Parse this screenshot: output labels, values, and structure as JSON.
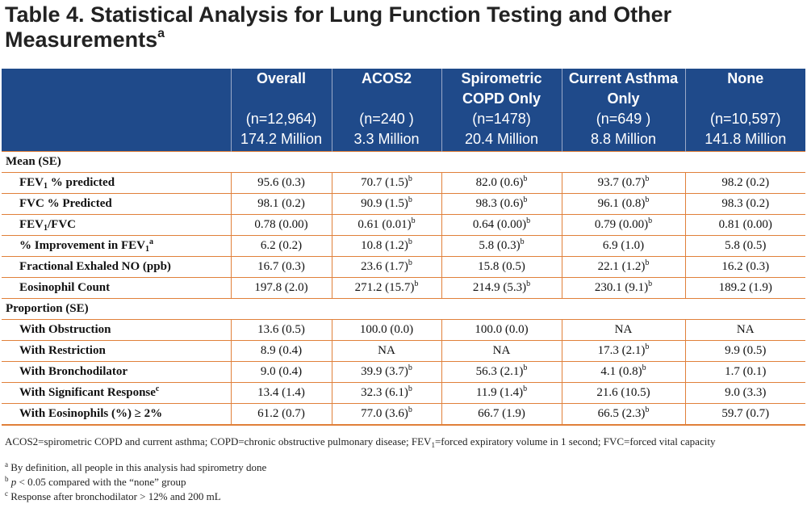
{
  "title": {
    "text": "Table 4. Statistical Analysis for Lung Function Testing and Other Measurements",
    "sup": "a"
  },
  "columns": [
    {
      "name": "Overall",
      "n": "(n=12,964)",
      "pop": "174.2 Million"
    },
    {
      "name": "ACOS2",
      "n": "(n=240 )",
      "pop": "3.3 Million"
    },
    {
      "name": "Spirometric COPD Only",
      "n": "(n=1478)",
      "pop": "20.4 Million"
    },
    {
      "name": "Current Asthma Only",
      "n": "(n=649 )",
      "pop": "8.8 Million"
    },
    {
      "name": "None",
      "n": "(n=10,597)",
      "pop": "141.8 Million"
    }
  ],
  "sections": {
    "mean": "Mean (SE)",
    "proportion": "Proportion (SE)"
  },
  "rows": {
    "fev1_pred": {
      "label_pre": "FEV",
      "label_sub": "1",
      "label_post": " % predicted",
      "values": [
        "95.6 (0.3)",
        "70.7 (1.5)",
        "82.0 (0.6)",
        "93.7 (0.7)",
        "98.2 (0.2)"
      ],
      "sups": [
        "",
        "b",
        "b",
        "b",
        ""
      ]
    },
    "fvc_pred": {
      "label": "FVC % Predicted",
      "values": [
        "98.1 (0.2)",
        "90.9 (1.5)",
        "98.3 (0.6)",
        "96.1 (0.8)",
        "98.3 (0.2)"
      ],
      "sups": [
        "",
        "b",
        "b",
        "b",
        ""
      ]
    },
    "fev1_fvc": {
      "label_pre": "FEV",
      "label_sub": "1",
      "label_post": "/FVC",
      "values": [
        "0.78 (0.00)",
        "0.61 (0.01)",
        "0.64 (0.00)",
        "0.79 (0.00)",
        "0.81 (0.00)"
      ],
      "sups": [
        "",
        "b",
        "b",
        "b",
        ""
      ]
    },
    "fev1_improve": {
      "label_pre": "% Improvement in FEV",
      "label_sub": "1",
      "label_sup": "a",
      "values": [
        "6.2 (0.2)",
        "10.8 (1.2)",
        "5.8 (0.3)",
        "6.9 (1.0)",
        "5.8 (0.5)"
      ],
      "sups": [
        "",
        "b",
        "b",
        "",
        ""
      ]
    },
    "feno": {
      "label": "Fractional Exhaled NO (ppb)",
      "values": [
        "16.7 (0.3)",
        "23.6 (1.7)",
        "15.8 (0.5)",
        "22.1 (1.2)",
        "16.2 (0.3)"
      ],
      "sups": [
        "",
        "b",
        "",
        "b",
        ""
      ]
    },
    "eos_count": {
      "label": "Eosinophil Count",
      "values": [
        "197.8 (2.0)",
        "271.2 (15.7)",
        "214.9 (5.3)",
        "230.1 (9.1)",
        "189.2 (1.9)"
      ],
      "sups": [
        "",
        "b",
        "b",
        "b",
        ""
      ]
    },
    "obstruction": {
      "label": "With Obstruction",
      "values": [
        "13.6 (0.5)",
        "100.0 (0.0)",
        "100.0 (0.0)",
        "NA",
        "NA"
      ],
      "sups": [
        "",
        "",
        "",
        "",
        ""
      ]
    },
    "restriction": {
      "label": "With Restriction",
      "values": [
        "8.9 (0.4)",
        "NA",
        "NA",
        "17.3 (2.1)",
        "9.9 (0.5)"
      ],
      "sups": [
        "",
        "",
        "",
        "b",
        ""
      ]
    },
    "bronchodilator": {
      "label": "With Bronchodilator",
      "values": [
        "9.0 (0.4)",
        "39.9 (3.7)",
        "56.3 (2.1)",
        "4.1 (0.8)",
        "1.7 (0.1)"
      ],
      "sups": [
        "",
        "b",
        "b",
        "b",
        ""
      ]
    },
    "sig_response": {
      "label": "With Significant Response",
      "label_sup": "c",
      "values": [
        "13.4 (1.4)",
        "32.3 (6.1)",
        "11.9 (1.4)",
        "21.6 (10.5)",
        "9.0 (3.3)"
      ],
      "sups": [
        "",
        "b",
        "b",
        "",
        ""
      ]
    },
    "eos_pct": {
      "label": "With Eosinophils (%) ≥ 2%",
      "values": [
        "61.2 (0.7)",
        "77.0 (3.6)",
        "66.7 (1.9)",
        "66.5 (2.3)",
        "59.7 (0.7)"
      ],
      "sups": [
        "",
        "b",
        "",
        "b",
        ""
      ]
    }
  },
  "notes": {
    "abbr_pre": "ACOS2=spirometric COPD and current asthma; COPD=chronic obstructive pulmonary disease; FEV",
    "abbr_sub": "1",
    "abbr_post": "=forced expiratory volume in 1 second; FVC=forced vital capacity",
    "a_mark": "a",
    "a_text": " By definition, all people in this analysis had spirometry done",
    "b_mark": "b",
    "b_p": "p",
    "b_text": " < 0.05 compared with the “none” group",
    "c_mark": "c",
    "c_text": " Response after bronchodilator > 12% and 200 mL"
  }
}
